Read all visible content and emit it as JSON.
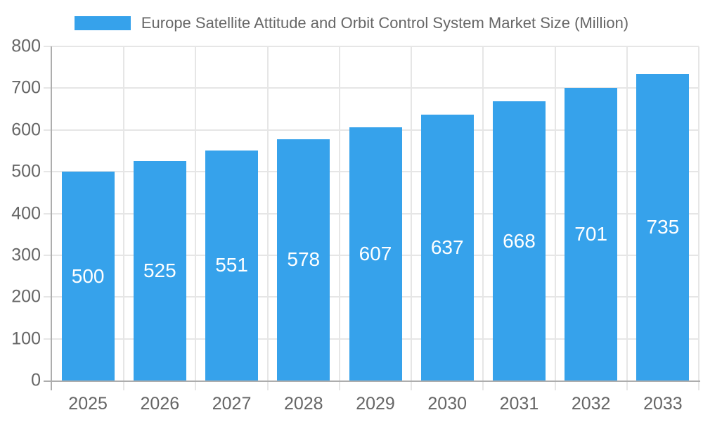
{
  "chart_data": {
    "type": "bar",
    "title": "Europe Satellite Attitude and Orbit Control System Market Size (Million)",
    "categories": [
      "2025",
      "2026",
      "2027",
      "2028",
      "2029",
      "2030",
      "2031",
      "2032",
      "2033"
    ],
    "values": [
      500,
      525,
      551,
      578,
      607,
      637,
      668,
      701,
      735
    ],
    "xlabel": "",
    "ylabel": "",
    "ylim": [
      0,
      800
    ],
    "ytick_step": 100,
    "grid": true,
    "legend_position": "top",
    "value_label_position": "inside-center",
    "colors": {
      "bar": "#36A2EB",
      "grid": "#e6e6e6",
      "axis": "#adadad",
      "tick_text": "#666666",
      "legend_text": "#666666",
      "value_label": "#ffffff",
      "background": "#ffffff"
    }
  }
}
